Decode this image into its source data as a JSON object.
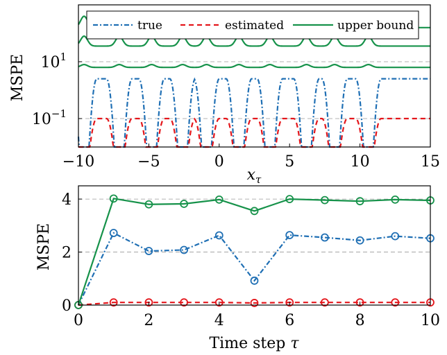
{
  "colors": {
    "true": "#1f6fb4",
    "estimated": "#e4161b",
    "upper_bound": "#16924a",
    "gridline": "#9a9a9a"
  },
  "chart_data": [
    {
      "type": "line",
      "xlabel": "x_τ",
      "ylabel": "MSPE",
      "yscale": "log",
      "xlim": [
        -10,
        15
      ],
      "ylim_exponent": [
        -2,
        3
      ],
      "grid": "horizontal dashed at 10^-1 and 10^1",
      "legend_position": "top",
      "x_ticks": [
        "−10",
        "−5",
        "0",
        "5",
        "10",
        "15"
      ],
      "y_ticks": [
        {
          "base": "10",
          "exp": "1",
          "value_exp": 1
        },
        {
          "base": "10",
          "exp": "−1",
          "value_exp": -1
        }
      ],
      "bump_centers": [
        -9.6,
        -7.1,
        -4.8,
        -2.6,
        -0.9,
        1.4,
        3.6,
        6.2,
        8.2,
        10.6
      ],
      "series": [
        {
          "name": "true",
          "key": "true",
          "style": "dash-dot",
          "baseline_exp": 0.4,
          "dip_exp": -2.6
        },
        {
          "name": "estimated",
          "key": "estimated",
          "style": "dashed",
          "baseline_exp": -1.0,
          "dip_exp": -2.6
        },
        {
          "name": "upper bound",
          "key": "upper_bound_1",
          "style": "solid",
          "baseline_exp": 2.2,
          "peak_exp": 2.6
        },
        {
          "name": "upper bound",
          "key": "upper_bound_2",
          "style": "solid",
          "baseline_exp": 1.55,
          "peak_exp": 1.9
        },
        {
          "name": "upper bound",
          "key": "upper_bound_3",
          "style": "solid",
          "baseline_exp": 0.8,
          "peak_exp": 0.9
        }
      ]
    },
    {
      "type": "line",
      "xlabel": "Time step τ",
      "ylabel": "MSPE",
      "xlim": [
        0,
        10
      ],
      "ylim": [
        0,
        4.5
      ],
      "grid": "horizontal dashed at 2 and 4",
      "x_ticks": [
        0,
        2,
        4,
        6,
        8,
        10
      ],
      "y_ticks": [
        0,
        2,
        4
      ],
      "x": [
        0,
        1,
        2,
        3,
        4,
        5,
        6,
        7,
        8,
        9,
        10
      ],
      "series": [
        {
          "name": "true",
          "key": "true",
          "style": "dash-dot",
          "values": [
            0,
            2.72,
            2.04,
            2.08,
            2.63,
            0.92,
            2.64,
            2.55,
            2.44,
            2.6,
            2.52
          ]
        },
        {
          "name": "estimated",
          "key": "estimated",
          "style": "dashed",
          "values": [
            0,
            0.1,
            0.1,
            0.1,
            0.1,
            0.08,
            0.1,
            0.1,
            0.1,
            0.1,
            0.1
          ]
        },
        {
          "name": "upper bound",
          "key": "upper_bound",
          "style": "solid",
          "values": [
            0,
            4.02,
            3.8,
            3.82,
            3.98,
            3.55,
            4.0,
            3.96,
            3.92,
            3.98,
            3.95
          ]
        }
      ]
    }
  ]
}
